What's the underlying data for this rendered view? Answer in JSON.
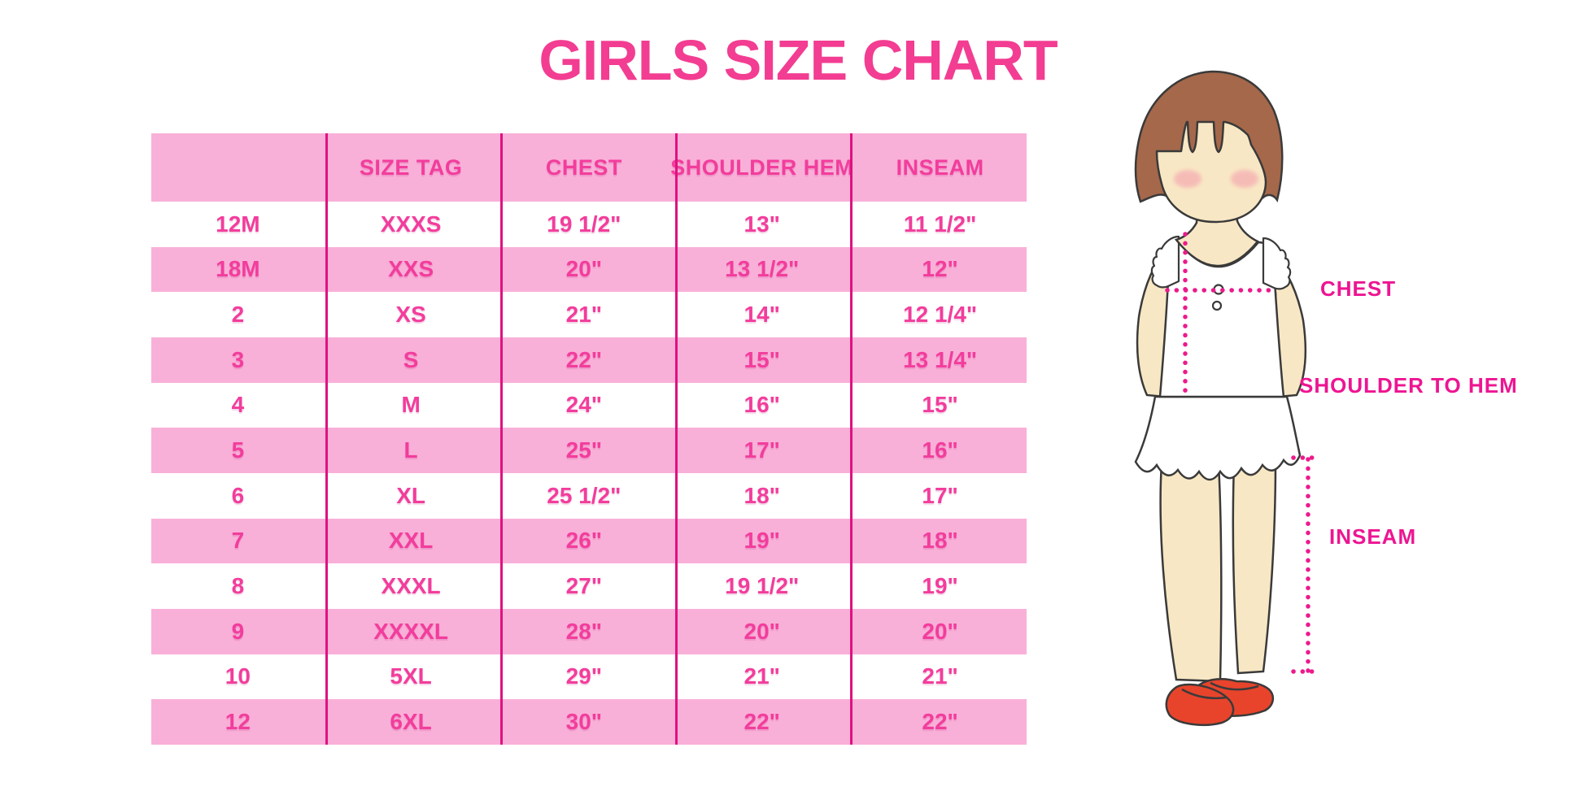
{
  "title": "GIRLS SIZE CHART",
  "colors": {
    "band": "#F9B0D8",
    "divider": "#E0117F",
    "text": "#F23D9C",
    "title": "#F23D92",
    "label": "#ED1592",
    "hair": "#A5684B",
    "skin": "#F8E7C4",
    "shoe": "#E8442C",
    "outline": "#3A3A3A"
  },
  "chart_data": {
    "type": "table",
    "title": "GIRLS SIZE CHART",
    "columns": [
      "",
      "SIZE TAG",
      "CHEST",
      "SHOULDER HEM",
      "INSEAM"
    ],
    "rows": [
      [
        "12M",
        "XXXS",
        "19 1/2\"",
        "13\"",
        "11 1/2\""
      ],
      [
        "18M",
        "XXS",
        "20\"",
        "13 1/2\"",
        "12\""
      ],
      [
        "2",
        "XS",
        "21\"",
        "14\"",
        "12 1/4\""
      ],
      [
        "3",
        "S",
        "22\"",
        "15\"",
        "13 1/4\""
      ],
      [
        "4",
        "M",
        "24\"",
        "16\"",
        "15\""
      ],
      [
        "5",
        "L",
        "25\"",
        "17\"",
        "16\""
      ],
      [
        "6",
        "XL",
        "25 1/2\"",
        "18\"",
        "17\""
      ],
      [
        "7",
        "XXL",
        "26\"",
        "19\"",
        "18\""
      ],
      [
        "8",
        "XXXL",
        "27\"",
        "19 1/2\"",
        "19\""
      ],
      [
        "9",
        "XXXXL",
        "28\"",
        "20\"",
        "20\""
      ],
      [
        "10",
        "5XL",
        "29\"",
        "21\"",
        "21\""
      ],
      [
        "12",
        "6XL",
        "30\"",
        "22\"",
        "22\""
      ]
    ],
    "layout_hints": {
      "header_background": "pink",
      "row_striping": "white/pink alternating",
      "column_dividers": "magenta vertical lines"
    }
  },
  "figure": {
    "description": "girl-measurement-illustration",
    "labels": {
      "chest": "CHEST",
      "shoulder_to_hem": "SHOULDER TO HEM",
      "inseam": "INSEAM"
    }
  }
}
